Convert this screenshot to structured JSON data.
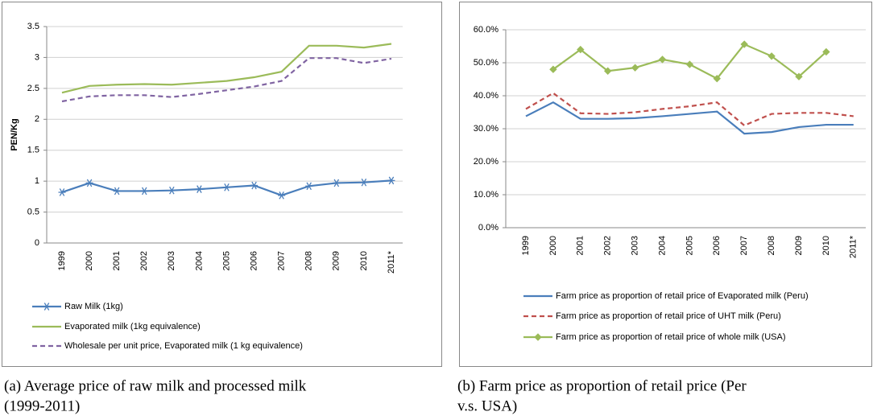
{
  "chart_data": [
    {
      "type": "line",
      "ylabel": "PEN/Kg",
      "categories": [
        "1999",
        "2000",
        "2001",
        "2002",
        "2003",
        "2004",
        "2005",
        "2006",
        "2007",
        "2008",
        "2009",
        "2010",
        "2011*"
      ],
      "series": [
        {
          "name": "Raw Milk (1kg)",
          "color": "#4a7ebb",
          "marker": "star",
          "dash": false,
          "values": [
            0.82,
            0.97,
            0.84,
            0.84,
            0.85,
            0.87,
            0.9,
            0.93,
            0.77,
            0.92,
            0.97,
            0.98,
            1.01
          ]
        },
        {
          "name": "Evaporated milk (1kg equivalence)",
          "color": "#9bbb59",
          "marker": "none",
          "dash": false,
          "values": [
            2.43,
            2.54,
            2.56,
            2.57,
            2.56,
            2.59,
            2.62,
            2.68,
            2.77,
            3.19,
            3.19,
            3.16,
            3.22
          ]
        },
        {
          "name": "Wholesale per unit price, Evaporated milk (1 kg equivalence)",
          "color": "#8064a2",
          "marker": "none",
          "dash": true,
          "values": [
            2.29,
            2.37,
            2.39,
            2.39,
            2.36,
            2.41,
            2.47,
            2.53,
            2.62,
            2.99,
            2.99,
            2.91,
            2.98
          ]
        }
      ],
      "ylim": [
        0,
        3.5
      ],
      "yticks": [
        0,
        0.5,
        1,
        1.5,
        2,
        2.5,
        3,
        3.5
      ],
      "grid": true,
      "legend": "bottom",
      "caption": [
        "(a) Average price of raw milk and processed milk",
        "(1999-2011)"
      ]
    },
    {
      "type": "line",
      "categories": [
        "1999",
        "2000",
        "2001",
        "2002",
        "2003",
        "2004",
        "2005",
        "2006",
        "2007",
        "2008",
        "2009",
        "2010",
        "2011*"
      ],
      "series": [
        {
          "name": "Farm price as proportion  of retail price of Evaporated milk (Peru)",
          "color": "#4a7ebb",
          "marker": "none",
          "dash": false,
          "values": [
            33.8,
            38.0,
            33.0,
            33.0,
            33.2,
            33.8,
            34.5,
            35.2,
            28.5,
            29.0,
            30.5,
            31.2,
            31.2
          ]
        },
        {
          "name": "Farm price as proportion  of retail price of UHT milk (Peru)",
          "color": "#c0504d",
          "marker": "none",
          "dash": true,
          "values": [
            36.0,
            40.8,
            34.7,
            34.5,
            35.0,
            36.0,
            36.8,
            38.0,
            31.0,
            34.5,
            34.8,
            34.8,
            33.8
          ]
        },
        {
          "name": "Farm price as proportion  of retail price of whole milk (USA)",
          "color": "#9bbb59",
          "marker": "diamond",
          "dash": false,
          "values": [
            null,
            48.0,
            54.0,
            47.5,
            48.5,
            51.0,
            49.5,
            45.2,
            55.6,
            52.0,
            45.8,
            53.3,
            null
          ]
        }
      ],
      "ylim": [
        0,
        60
      ],
      "yticks": [
        {
          "value": 0,
          "label": "0.0%"
        },
        {
          "value": 10,
          "label": "10.0%"
        },
        {
          "value": 20,
          "label": "20.0%"
        },
        {
          "value": 30,
          "label": "30.0%"
        },
        {
          "value": 40,
          "label": "40.0%"
        },
        {
          "value": 50,
          "label": "50.0%"
        },
        {
          "value": 60,
          "label": "60.0%"
        }
      ],
      "grid": true,
      "legend": "bottom",
      "caption": [
        "(b) Farm price as proportion of retail price (Per",
        "v.s. USA)"
      ]
    }
  ]
}
